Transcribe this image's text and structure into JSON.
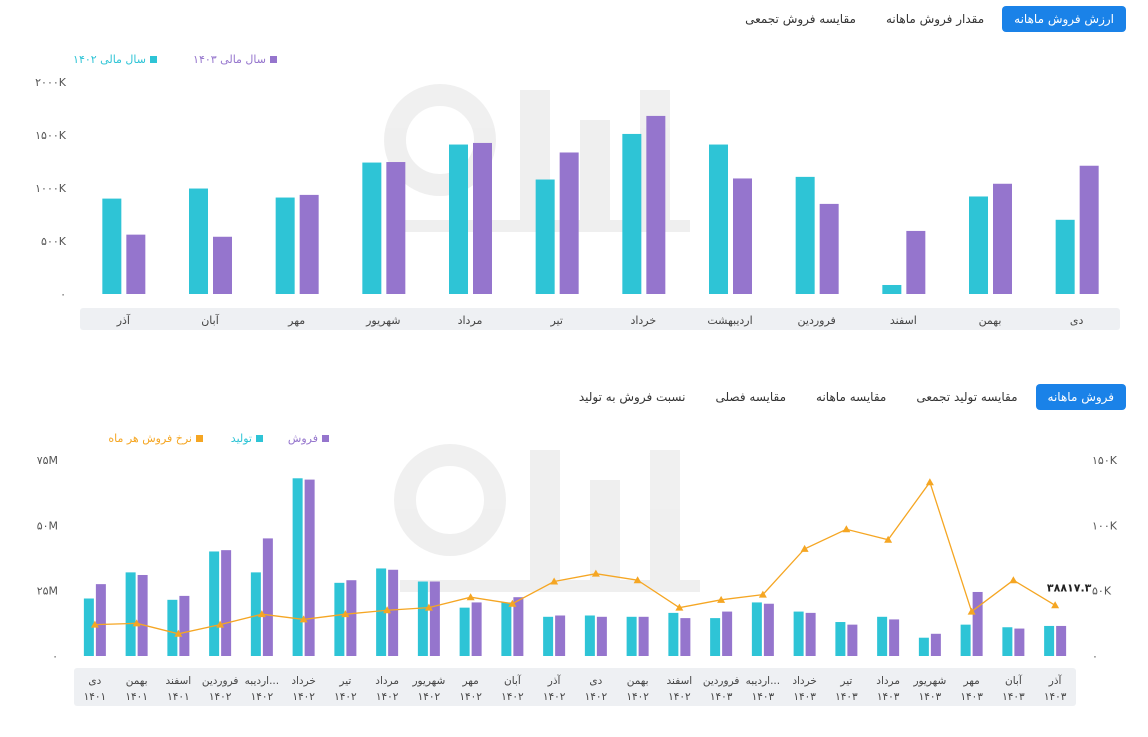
{
  "top_tabs": [
    {
      "label": "ارزش فروش ماهانه",
      "active": true
    },
    {
      "label": "مقدار فروش ماهانه",
      "active": false
    },
    {
      "label": "مقایسه فروش تجمعی",
      "active": false
    }
  ],
  "bottom_tabs": [
    {
      "label": "فروش ماهانه",
      "active": true
    },
    {
      "label": "مقایسه تولید تجمعی",
      "active": false
    },
    {
      "label": "مقایسه ماهانه",
      "active": false
    },
    {
      "label": "مقایسه فصلی",
      "active": false
    },
    {
      "label": "نسبت فروش به تولید",
      "active": false
    }
  ],
  "colors": {
    "teal": "#2ec4d6",
    "purple": "#9575cd",
    "orange": "#f5a623",
    "accent": "#1a82e8"
  },
  "chart_data": [
    {
      "type": "bar",
      "categories": [
        "دی",
        "بهمن",
        "اسفند",
        "فروردین",
        "اردیبهشت",
        "خرداد",
        "تیر",
        "مرداد",
        "شهریور",
        "مهر",
        "آبان",
        "آذر"
      ],
      "series": [
        {
          "name": "سال مالی ۱۴۰۲",
          "color": "#2ec4d6",
          "values": [
            700,
            920,
            85,
            1105,
            1410,
            1510,
            1080,
            1410,
            1240,
            910,
            995,
            900
          ]
        },
        {
          "name": "سال مالی ۱۴۰۳",
          "color": "#9575cd",
          "values": [
            1210,
            1040,
            595,
            850,
            1090,
            1680,
            1335,
            1425,
            1245,
            935,
            540,
            560
          ]
        }
      ],
      "ylim": [
        0,
        2000
      ],
      "yticks": [
        0,
        500,
        1000,
        1500,
        2000
      ],
      "ytick_labels": [
        "۰",
        "۵۰۰K",
        "۱۰۰۰K",
        "۱۵۰۰K",
        "۲۰۰۰K"
      ],
      "legend_position": "top-left"
    },
    {
      "type": "bar+line",
      "categories": [
        "دی",
        "بهمن",
        "اسفند",
        "فروردین",
        "اردیبه...",
        "خرداد",
        "تیر",
        "مرداد",
        "شهریور",
        "مهر",
        "آبان",
        "آذر",
        "دی",
        "بهمن",
        "اسفند",
        "فروردین",
        "اردیبه...",
        "خرداد",
        "تیر",
        "مرداد",
        "شهریور",
        "مهر",
        "آبان",
        "آذر"
      ],
      "category_years": [
        "۱۴۰۱",
        "۱۴۰۱",
        "۱۴۰۱",
        "۱۴۰۲",
        "۱۴۰۲",
        "۱۴۰۲",
        "۱۴۰۲",
        "۱۴۰۲",
        "۱۴۰۲",
        "۱۴۰۲",
        "۱۴۰۲",
        "۱۴۰۲",
        "۱۴۰۲",
        "۱۴۰۲",
        "۱۴۰۲",
        "۱۴۰۳",
        "۱۴۰۳",
        "۱۴۰۳",
        "۱۴۰۳",
        "۱۴۰۳",
        "۱۴۰۳",
        "۱۴۰۳",
        "۱۴۰۳",
        "۱۴۰۳"
      ],
      "series": [
        {
          "name": "فروش",
          "color": "#9575cd",
          "axis": "left",
          "values": [
            27.5,
            31,
            23,
            40.5,
            45,
            67.5,
            29,
            33,
            28.5,
            20.5,
            22.5,
            15.5,
            15,
            15,
            14.5,
            17,
            20,
            16.5,
            12,
            14,
            8.5,
            24.5,
            10.5,
            11.5
          ]
        },
        {
          "name": "تولید",
          "color": "#2ec4d6",
          "axis": "left",
          "values": [
            22,
            32,
            21.5,
            40,
            32,
            68,
            28,
            33.5,
            28.5,
            18.5,
            20.5,
            15,
            15.5,
            15,
            16.5,
            14.5,
            20.5,
            17,
            13,
            15,
            7,
            12,
            11,
            11.5
          ]
        },
        {
          "name": "نرخ فروش هر ماه",
          "color": "#f5a623",
          "axis": "right",
          "values": [
            24,
            25,
            17,
            24,
            32,
            28,
            32,
            35,
            37,
            45,
            40,
            57,
            63,
            58,
            37,
            43,
            47,
            82,
            97,
            89,
            133,
            34,
            58,
            38.8173
          ]
        }
      ],
      "last_point_label": "۳۸۸۱۷.۳",
      "ylim_left": [
        0,
        75
      ],
      "yticks_left_labels": [
        "۰",
        "۲۵M",
        "۵۰M",
        "۷۵M"
      ],
      "ylim_right": [
        0,
        150
      ],
      "yticks_right_labels": [
        "۰",
        "۵۰K",
        "۱۰۰K",
        "۱۵۰K"
      ],
      "legend_position": "top-left"
    }
  ]
}
